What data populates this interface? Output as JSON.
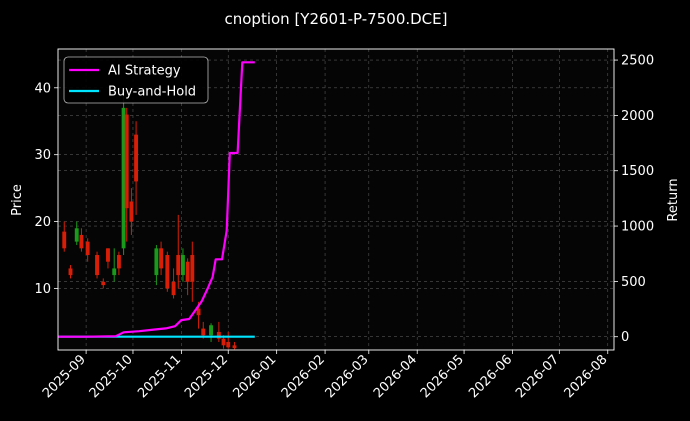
{
  "chart_data": {
    "type": "line",
    "title": "cnoption [Y2601-P-7500.DCE]",
    "ylabel_left": "Price",
    "ylabel_right": "Return",
    "x_range": [
      "2025-08-14",
      "2026-08-05"
    ],
    "x_ticks": [
      "2025-09",
      "2025-10",
      "2025-11",
      "2025-12",
      "2026-01",
      "2026-02",
      "2026-03",
      "2026-04",
      "2026-05",
      "2026-06",
      "2026-07",
      "2026-08"
    ],
    "y_left_ticks": [
      10,
      20,
      30,
      40
    ],
    "y_left_range": [
      0.8,
      45.8
    ],
    "y_right_ticks": [
      0,
      500,
      1000,
      1500,
      2000,
      2500
    ],
    "y_right_range": [
      -120,
      2600
    ],
    "grid": true,
    "legend_position": "upper-left",
    "colors": {
      "background": "#000000",
      "up_candle": "#1a9a1a",
      "down_candle": "#d81e06",
      "ai_strategy": "#ff00ff",
      "buy_and_hold": "#00e5ff",
      "grid": "#555555"
    },
    "series": [
      {
        "name": "AI Strategy",
        "axis": "right",
        "points": [
          [
            "2025-08-14",
            0
          ],
          [
            "2025-09-01",
            0
          ],
          [
            "2025-09-20",
            5
          ],
          [
            "2025-09-25",
            40
          ],
          [
            "2025-10-05",
            50
          ],
          [
            "2025-10-15",
            65
          ],
          [
            "2025-10-22",
            75
          ],
          [
            "2025-10-28",
            95
          ],
          [
            "2025-11-01",
            150
          ],
          [
            "2025-11-06",
            160
          ],
          [
            "2025-11-10",
            240
          ],
          [
            "2025-11-14",
            320
          ],
          [
            "2025-11-18",
            440
          ],
          [
            "2025-11-21",
            540
          ],
          [
            "2025-11-23",
            700
          ],
          [
            "2025-11-27",
            700
          ],
          [
            "2025-11-30",
            960
          ],
          [
            "2025-12-02",
            1660
          ],
          [
            "2025-12-07",
            1660
          ],
          [
            "2025-12-10",
            2480
          ],
          [
            "2025-12-18",
            2480
          ]
        ]
      },
      {
        "name": "Buy-and-Hold",
        "axis": "right",
        "points": [
          [
            "2025-08-14",
            0
          ],
          [
            "2025-12-18",
            0
          ]
        ]
      }
    ],
    "candles": [
      {
        "date": "2025-08-18",
        "open": 18.5,
        "close": 16.0,
        "high": 20.0,
        "low": 15.5
      },
      {
        "date": "2025-08-22",
        "open": 13.0,
        "close": 12.0,
        "high": 13.5,
        "low": 11.5
      },
      {
        "date": "2025-08-26",
        "open": 17.0,
        "close": 19.0,
        "high": 20.0,
        "low": 16.5
      },
      {
        "date": "2025-08-29",
        "open": 18.0,
        "close": 16.0,
        "high": 19.0,
        "low": 15.5
      },
      {
        "date": "2025-09-02",
        "open": 17.0,
        "close": 15.0,
        "high": 17.5,
        "low": 14.0
      },
      {
        "date": "2025-09-08",
        "open": 15.0,
        "close": 12.0,
        "high": 15.5,
        "low": 11.5
      },
      {
        "date": "2025-09-12",
        "open": 11.0,
        "close": 10.5,
        "high": 11.5,
        "low": 10.0
      },
      {
        "date": "2025-09-15",
        "open": 16.0,
        "close": 14.0,
        "high": 16.0,
        "low": 13.0
      },
      {
        "date": "2025-09-19",
        "open": 12.0,
        "close": 13.0,
        "high": 16.0,
        "low": 11.0
      },
      {
        "date": "2025-09-22",
        "open": 15.0,
        "close": 13.0,
        "high": 15.5,
        "low": 12.0
      },
      {
        "date": "2025-09-25",
        "open": 16.0,
        "close": 37.0,
        "high": 39.0,
        "low": 15.0
      },
      {
        "date": "2025-09-27",
        "open": 36.0,
        "close": 22.0,
        "high": 37.0,
        "low": 17.0
      },
      {
        "date": "2025-09-30",
        "open": 23.0,
        "close": 20.0,
        "high": 25.0,
        "low": 18.0
      },
      {
        "date": "2025-10-03",
        "open": 33.0,
        "close": 26.0,
        "high": 35.0,
        "low": 21.0
      },
      {
        "date": "2025-10-16",
        "open": 12.0,
        "close": 16.0,
        "high": 16.5,
        "low": 10.5
      },
      {
        "date": "2025-10-19",
        "open": 16.0,
        "close": 13.0,
        "high": 17.0,
        "low": 12.0
      },
      {
        "date": "2025-10-23",
        "open": 15.0,
        "close": 10.0,
        "high": 15.5,
        "low": 9.5
      },
      {
        "date": "2025-10-27",
        "open": 11.0,
        "close": 9.0,
        "high": 13.0,
        "low": 8.5
      },
      {
        "date": "2025-10-30",
        "open": 15.0,
        "close": 12.0,
        "high": 21.0,
        "low": 10.0
      },
      {
        "date": "2025-11-02",
        "open": 12.0,
        "close": 15.0,
        "high": 16.0,
        "low": 11.0
      },
      {
        "date": "2025-11-05",
        "open": 14.0,
        "close": 11.0,
        "high": 14.5,
        "low": 9.0
      },
      {
        "date": "2025-11-08",
        "open": 15.0,
        "close": 11.0,
        "high": 17.0,
        "low": 8.0
      },
      {
        "date": "2025-11-12",
        "open": 7.0,
        "close": 6.0,
        "high": 8.0,
        "low": 4.0
      },
      {
        "date": "2025-11-15",
        "open": 4.0,
        "close": 3.0,
        "high": 5.0,
        "low": 2.5
      },
      {
        "date": "2025-11-20",
        "open": 3.0,
        "close": 4.5,
        "high": 4.8,
        "low": 2.0
      },
      {
        "date": "2025-11-25",
        "open": 3.5,
        "close": 2.5,
        "high": 5.0,
        "low": 2.0
      },
      {
        "date": "2025-11-28",
        "open": 2.5,
        "close": 1.5,
        "high": 3.0,
        "low": 1.0
      },
      {
        "date": "2025-12-01",
        "open": 2.0,
        "close": 1.2,
        "high": 3.5,
        "low": 1.0
      },
      {
        "date": "2025-12-05",
        "open": 1.5,
        "close": 1.1,
        "high": 2.0,
        "low": 0.9
      }
    ]
  }
}
